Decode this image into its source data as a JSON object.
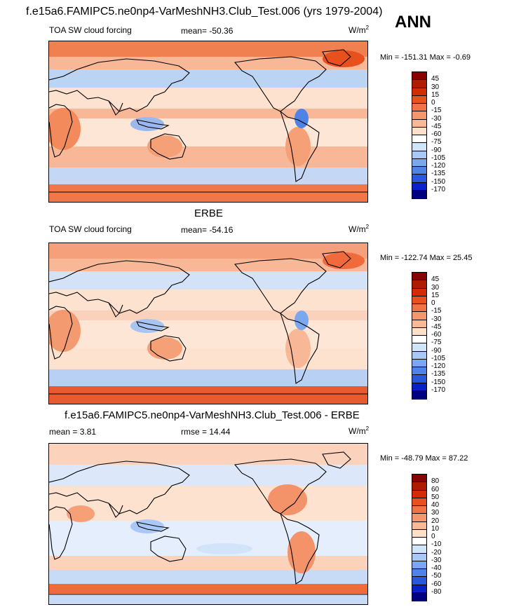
{
  "header": {
    "title": "f.e15a6.FAMIPC5.ne0np4-VarMeshNH3.Club_Test.006 (yrs 1979-2004)",
    "season": "ANN"
  },
  "panels": [
    {
      "title": "",
      "field": "TOA SW cloud forcing",
      "stat": "mean= -50.36",
      "units": "W/m",
      "units_sup": "2",
      "minmax": "Min = -151.31 Max =  -0.69",
      "levels": [
        "45",
        "30",
        "15",
        "0",
        "-15",
        "-30",
        "-45",
        "-60",
        "-75",
        "-90",
        "-105",
        "-120",
        "-135",
        "-150",
        "-170"
      ],
      "colors": [
        "#8b0000",
        "#b01a00",
        "#d22d00",
        "#e8501e",
        "#f27245",
        "#f6966e",
        "#fab898",
        "#fde0cc",
        "#ffffff",
        "#d2e4fa",
        "#aac8f6",
        "#7aa8ee",
        "#4f84e6",
        "#2a58dc",
        "#0a20c8",
        "#000080"
      ],
      "map_palette": "sw"
    },
    {
      "title": "ERBE",
      "field": "TOA SW cloud forcing",
      "stat": "mean= -54.16",
      "units": "W/m",
      "units_sup": "2",
      "minmax": "Min = -122.74 Max =  25.45",
      "levels": [
        "45",
        "30",
        "15",
        "0",
        "-15",
        "-30",
        "-45",
        "-60",
        "-75",
        "-90",
        "-105",
        "-120",
        "-135",
        "-150",
        "-170"
      ],
      "colors": [
        "#8b0000",
        "#b01a00",
        "#d22d00",
        "#e8501e",
        "#f27245",
        "#f6966e",
        "#fab898",
        "#fde0cc",
        "#ffffff",
        "#d2e4fa",
        "#aac8f6",
        "#7aa8ee",
        "#4f84e6",
        "#2a58dc",
        "#0a20c8",
        "#000080"
      ],
      "map_palette": "obs"
    },
    {
      "title": "f.e15a6.FAMIPC5.ne0np4-VarMeshNH3.Club_Test.006 - ERBE",
      "field": "mean =   3.81",
      "stat": "rmse =  14.44",
      "units": "W/m",
      "units_sup": "2",
      "minmax": "Min = -48.79 Max =  87.22",
      "levels": [
        "80",
        "60",
        "50",
        "40",
        "30",
        "20",
        "10",
        "0",
        "-10",
        "-20",
        "-30",
        "-40",
        "-50",
        "-60",
        "-80"
      ],
      "colors": [
        "#8b0000",
        "#b01a00",
        "#d22d00",
        "#e8501e",
        "#f27245",
        "#f6966e",
        "#fab898",
        "#fde0cc",
        "#ffffff",
        "#d2e4fa",
        "#aac8f6",
        "#7aa8ee",
        "#4f84e6",
        "#2a58dc",
        "#0a20c8",
        "#000080"
      ],
      "map_palette": "diff"
    }
  ]
}
